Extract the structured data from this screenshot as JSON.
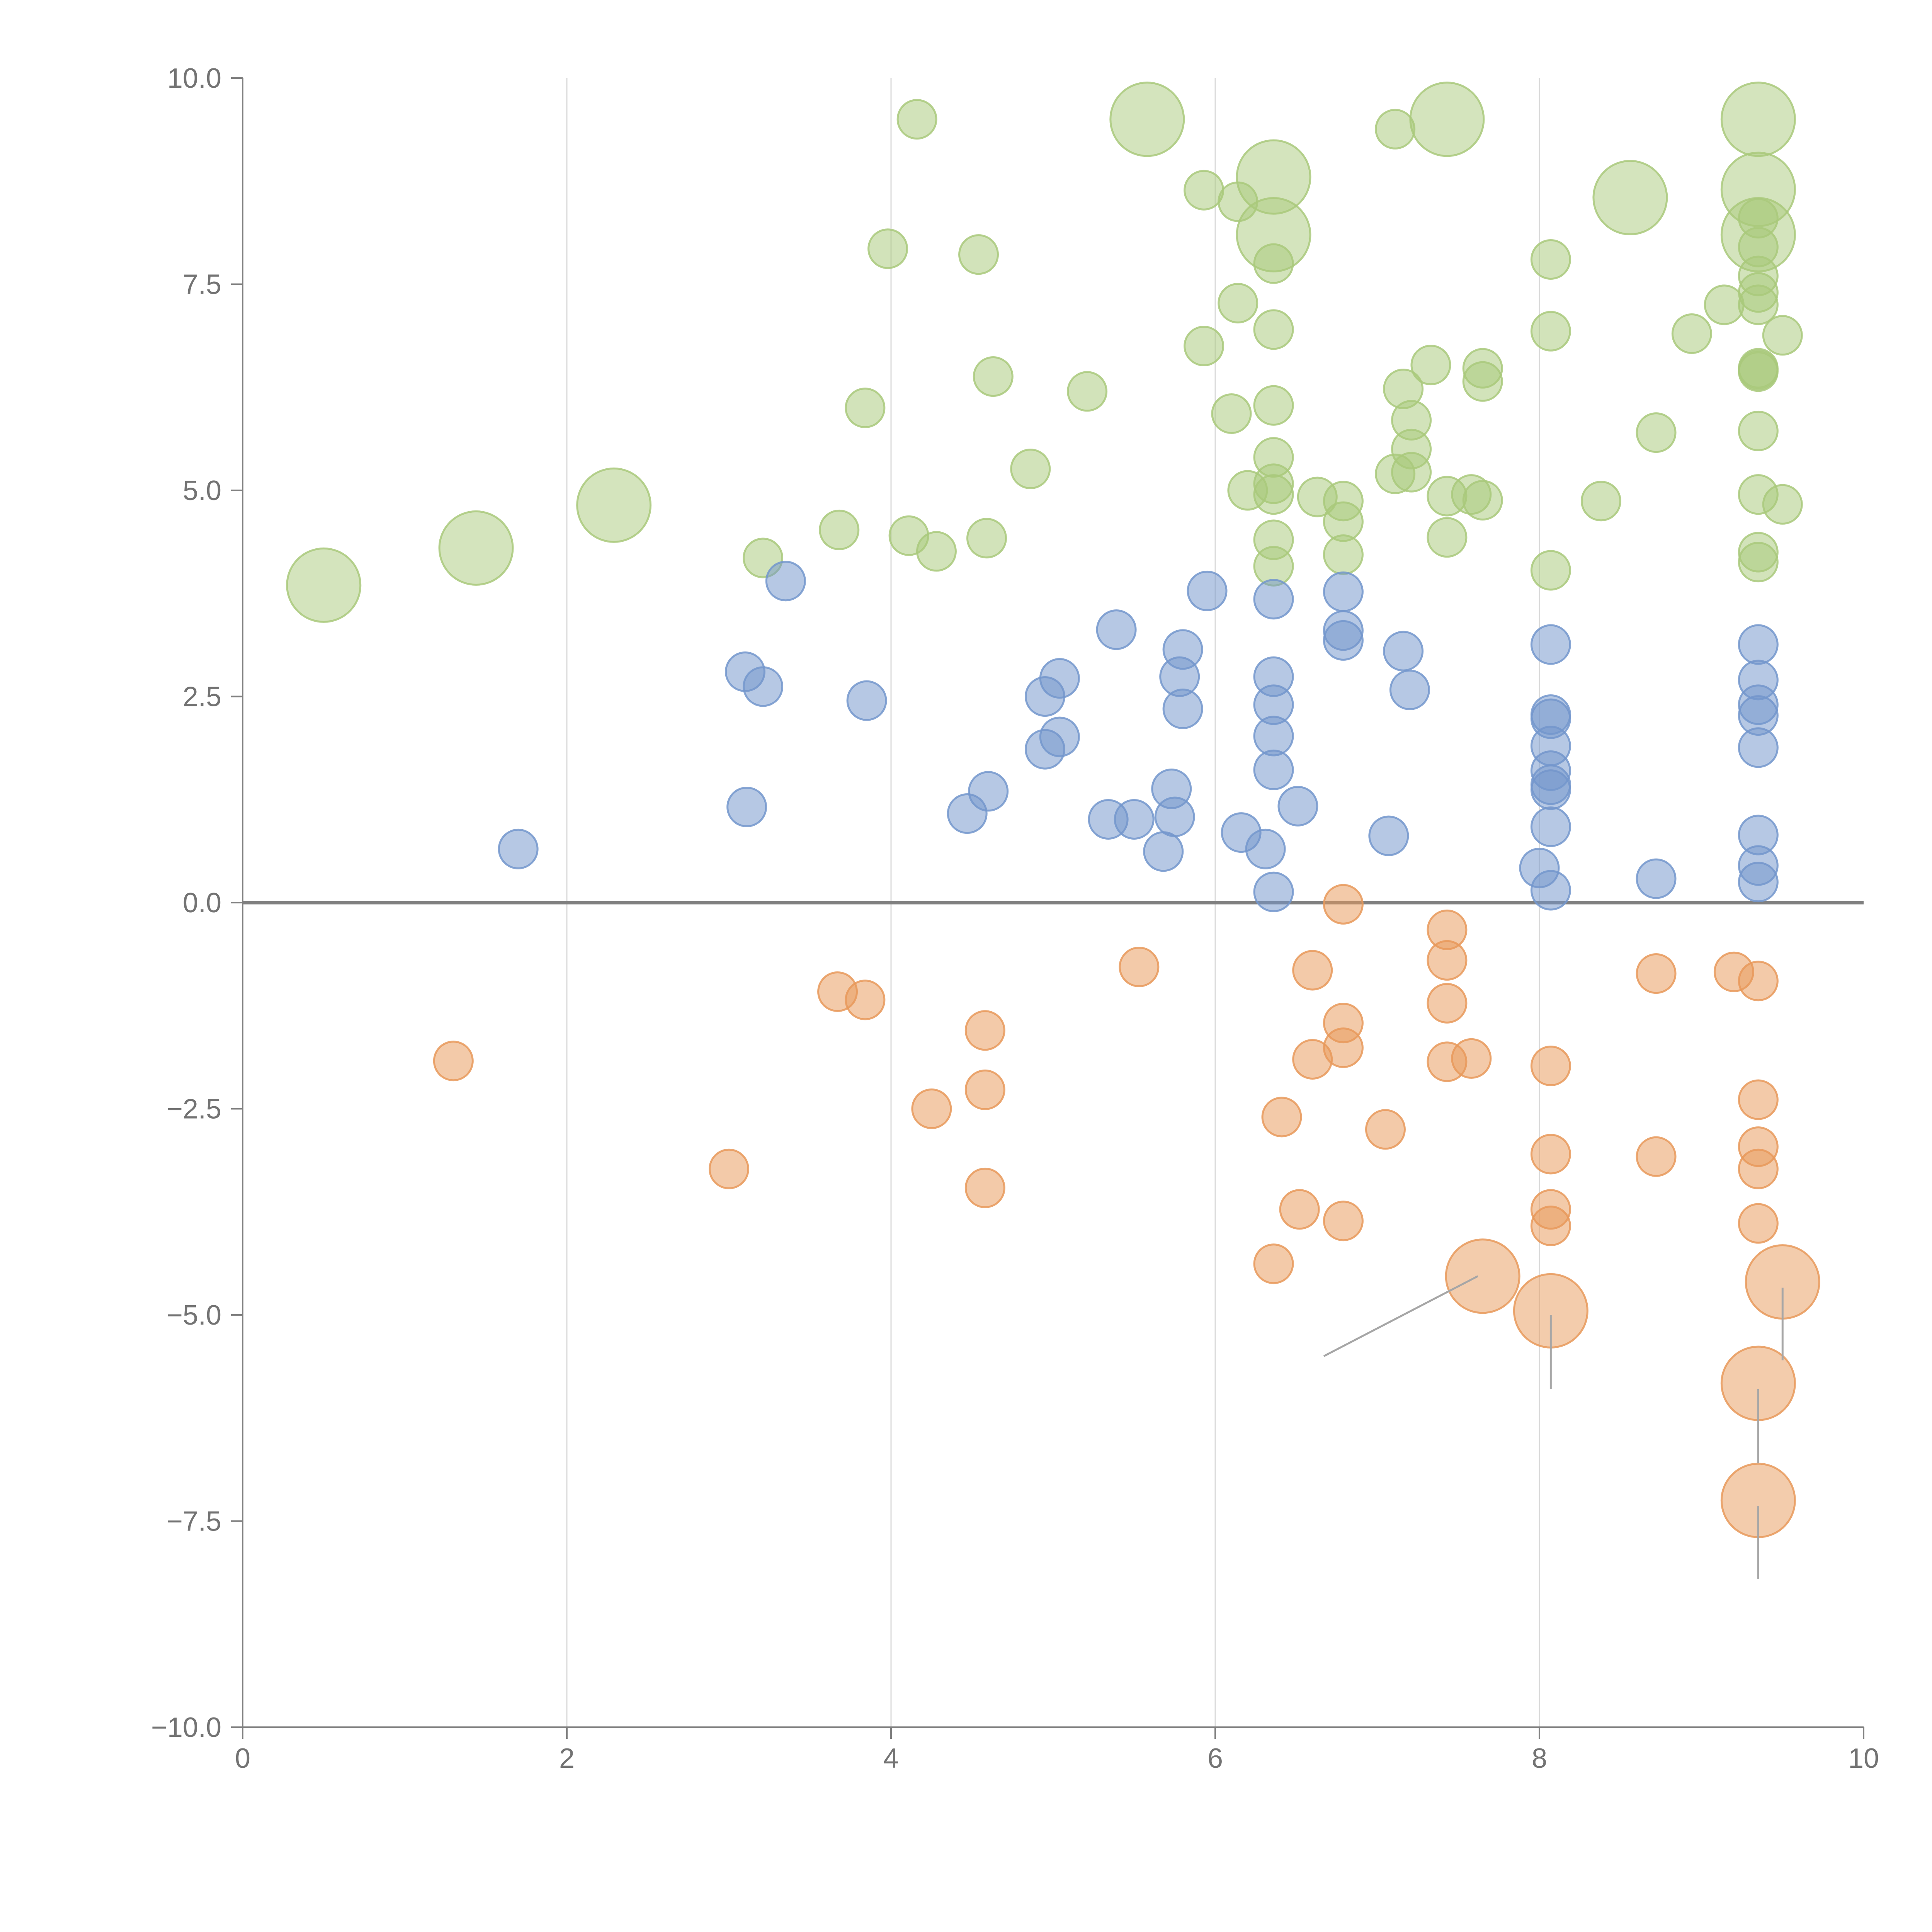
{
  "chart_data": {
    "type": "scatter",
    "title": "",
    "xlabel": "",
    "ylabel": "",
    "xlim": [
      0,
      10
    ],
    "ylim": [
      -10,
      10
    ],
    "x_ticks": [
      "0",
      "2",
      "4",
      "6",
      "8",
      "10"
    ],
    "y_ticks": [
      "10.0",
      "7.5",
      "5.0",
      "2.5",
      "0.0",
      "−2.5",
      "−5.0",
      "−7.5",
      "−10.0"
    ],
    "grid": {
      "vertical": true,
      "horizontal": false
    },
    "zero_line": true,
    "colors": {
      "green": "#a9c97b",
      "blue": "#7396cc",
      "orange": "#e8995a"
    },
    "series": [
      {
        "color": "green",
        "points": [
          [
            0.5,
            3.85,
            "big"
          ],
          [
            1.44,
            4.3,
            "big"
          ],
          [
            2.29,
            4.82,
            "big"
          ],
          [
            5.58,
            9.5,
            "big"
          ],
          [
            6.36,
            8.8,
            "big"
          ],
          [
            6.36,
            8.1,
            "big"
          ],
          [
            7.43,
            9.5,
            "big"
          ],
          [
            8.56,
            8.55,
            "big"
          ],
          [
            9.35,
            9.5,
            "big"
          ],
          [
            9.35,
            8.65,
            "big"
          ],
          [
            9.35,
            8.1,
            "big"
          ],
          [
            4.16,
            9.5
          ],
          [
            3.98,
            7.93
          ],
          [
            4.54,
            7.86
          ],
          [
            3.84,
            6.0
          ],
          [
            4.63,
            6.38
          ],
          [
            3.68,
            4.52
          ],
          [
            3.21,
            4.18
          ],
          [
            4.11,
            4.45
          ],
          [
            4.28,
            4.26
          ],
          [
            4.59,
            4.42
          ],
          [
            4.86,
            5.26
          ],
          [
            5.21,
            6.2
          ],
          [
            5.93,
            8.64
          ],
          [
            6.14,
            8.5
          ],
          [
            6.36,
            7.75
          ],
          [
            6.14,
            7.27
          ],
          [
            5.93,
            6.75
          ],
          [
            6.36,
            6.95
          ],
          [
            6.1,
            5.93
          ],
          [
            6.36,
            6.03
          ],
          [
            6.2,
            5.0
          ],
          [
            6.36,
            5.4
          ],
          [
            6.36,
            5.08
          ],
          [
            6.36,
            4.95
          ],
          [
            6.36,
            4.4
          ],
          [
            6.36,
            4.08
          ],
          [
            6.63,
            4.92
          ],
          [
            6.79,
            4.87
          ],
          [
            6.79,
            4.62
          ],
          [
            6.79,
            4.22
          ],
          [
            7.11,
            9.38
          ],
          [
            7.16,
            6.23
          ],
          [
            7.21,
            5.85
          ],
          [
            7.21,
            5.5
          ],
          [
            7.11,
            5.2
          ],
          [
            7.21,
            5.22
          ],
          [
            7.33,
            6.52
          ],
          [
            7.43,
            4.93
          ],
          [
            7.43,
            4.43
          ],
          [
            7.58,
            4.95
          ],
          [
            7.65,
            6.48
          ],
          [
            7.65,
            6.32
          ],
          [
            7.65,
            4.88
          ],
          [
            8.07,
            7.8
          ],
          [
            8.07,
            6.93
          ],
          [
            8.07,
            4.03
          ],
          [
            8.38,
            4.87
          ],
          [
            8.72,
            5.7
          ],
          [
            8.94,
            6.9
          ],
          [
            9.14,
            7.25
          ],
          [
            9.35,
            8.3
          ],
          [
            9.35,
            7.95
          ],
          [
            9.35,
            7.6
          ],
          [
            9.35,
            7.4
          ],
          [
            9.35,
            7.25
          ],
          [
            9.35,
            6.48
          ],
          [
            9.35,
            6.46
          ],
          [
            9.35,
            6.44
          ],
          [
            9.35,
            5.72
          ],
          [
            9.35,
            4.95
          ],
          [
            9.35,
            4.25
          ],
          [
            9.35,
            4.13
          ],
          [
            9.5,
            6.88
          ],
          [
            9.5,
            4.83
          ]
        ]
      },
      {
        "color": "blue",
        "points": [
          [
            1.7,
            0.65
          ],
          [
            3.11,
            1.16
          ],
          [
            3.1,
            2.8
          ],
          [
            3.21,
            2.62
          ],
          [
            3.35,
            3.9
          ],
          [
            3.85,
            2.45
          ],
          [
            4.47,
            1.08
          ],
          [
            4.6,
            1.35
          ],
          [
            4.95,
            1.86
          ],
          [
            4.95,
            2.5
          ],
          [
            5.04,
            2.01
          ],
          [
            5.04,
            2.72
          ],
          [
            5.34,
            1.01
          ],
          [
            5.39,
            3.31
          ],
          [
            5.5,
            1.01
          ],
          [
            5.68,
            0.62
          ],
          [
            5.73,
            1.38
          ],
          [
            5.75,
            1.04
          ],
          [
            5.78,
            2.74
          ],
          [
            5.8,
            3.07
          ],
          [
            5.8,
            2.35
          ],
          [
            5.95,
            3.78
          ],
          [
            6.16,
            0.85
          ],
          [
            6.31,
            0.65
          ],
          [
            6.36,
            0.13
          ],
          [
            6.36,
            1.61
          ],
          [
            6.36,
            2.02
          ],
          [
            6.36,
            2.4
          ],
          [
            6.36,
            2.74
          ],
          [
            6.36,
            3.68
          ],
          [
            6.51,
            1.17
          ],
          [
            6.79,
            3.77
          ],
          [
            6.79,
            3.3
          ],
          [
            6.79,
            3.18
          ],
          [
            7.07,
            0.81
          ],
          [
            7.16,
            3.05
          ],
          [
            7.2,
            2.58
          ],
          [
            8.0,
            0.42
          ],
          [
            8.07,
            0.15
          ],
          [
            8.07,
            0.92
          ],
          [
            8.07,
            1.37
          ],
          [
            8.07,
            1.43
          ],
          [
            8.07,
            1.6
          ],
          [
            8.07,
            1.9
          ],
          [
            8.07,
            2.23
          ],
          [
            8.07,
            2.28
          ],
          [
            8.07,
            3.13
          ],
          [
            8.72,
            0.29
          ],
          [
            9.35,
            0.25
          ],
          [
            9.35,
            0.45
          ],
          [
            9.35,
            0.82
          ],
          [
            9.35,
            1.88
          ],
          [
            9.35,
            2.27
          ],
          [
            9.35,
            2.4
          ],
          [
            9.35,
            2.7
          ],
          [
            9.35,
            3.13
          ]
        ]
      },
      {
        "color": "orange",
        "points": [
          [
            7.65,
            -4.53,
            "big"
          ],
          [
            8.07,
            -4.95,
            "big"
          ],
          [
            9.5,
            -4.6,
            "big"
          ],
          [
            9.35,
            -5.83,
            "big"
          ],
          [
            9.35,
            -7.25,
            "big"
          ],
          [
            1.3,
            -1.92
          ],
          [
            3.0,
            -3.23
          ],
          [
            3.67,
            -1.08
          ],
          [
            3.84,
            -1.18
          ],
          [
            4.25,
            -2.5
          ],
          [
            4.58,
            -1.55
          ],
          [
            4.58,
            -2.27
          ],
          [
            4.58,
            -3.46
          ],
          [
            5.53,
            -0.78
          ],
          [
            6.36,
            -4.38
          ],
          [
            6.41,
            -2.6
          ],
          [
            6.52,
            -3.72
          ],
          [
            6.6,
            -0.82
          ],
          [
            6.6,
            -1.9
          ],
          [
            6.79,
            -0.02
          ],
          [
            6.79,
            -1.46
          ],
          [
            6.79,
            -1.76
          ],
          [
            6.79,
            -3.86
          ],
          [
            7.05,
            -2.75
          ],
          [
            7.43,
            -0.33
          ],
          [
            7.43,
            -0.7
          ],
          [
            7.43,
            -1.22
          ],
          [
            7.43,
            -1.93
          ],
          [
            7.58,
            -1.89
          ],
          [
            8.07,
            -1.98
          ],
          [
            8.07,
            -3.05
          ],
          [
            8.07,
            -3.72
          ],
          [
            8.07,
            -3.92
          ],
          [
            8.72,
            -0.86
          ],
          [
            8.72,
            -3.08
          ],
          [
            9.2,
            -0.84
          ],
          [
            9.35,
            -0.95
          ],
          [
            9.35,
            -2.39
          ],
          [
            9.35,
            -2.96
          ],
          [
            9.35,
            -3.23
          ],
          [
            9.35,
            -3.89
          ]
        ]
      }
    ],
    "leader_lines": [
      [
        [
          7.62,
          -4.53
        ],
        [
          6.67,
          -5.5
        ]
      ],
      [
        [
          8.07,
          -5.0
        ],
        [
          8.07,
          -5.9
        ]
      ],
      [
        [
          9.5,
          -4.67
        ],
        [
          9.5,
          -5.55
        ]
      ],
      [
        [
          9.35,
          -5.9
        ],
        [
          9.35,
          -6.8
        ]
      ],
      [
        [
          9.35,
          -7.32
        ],
        [
          9.35,
          -8.2
        ]
      ]
    ]
  }
}
